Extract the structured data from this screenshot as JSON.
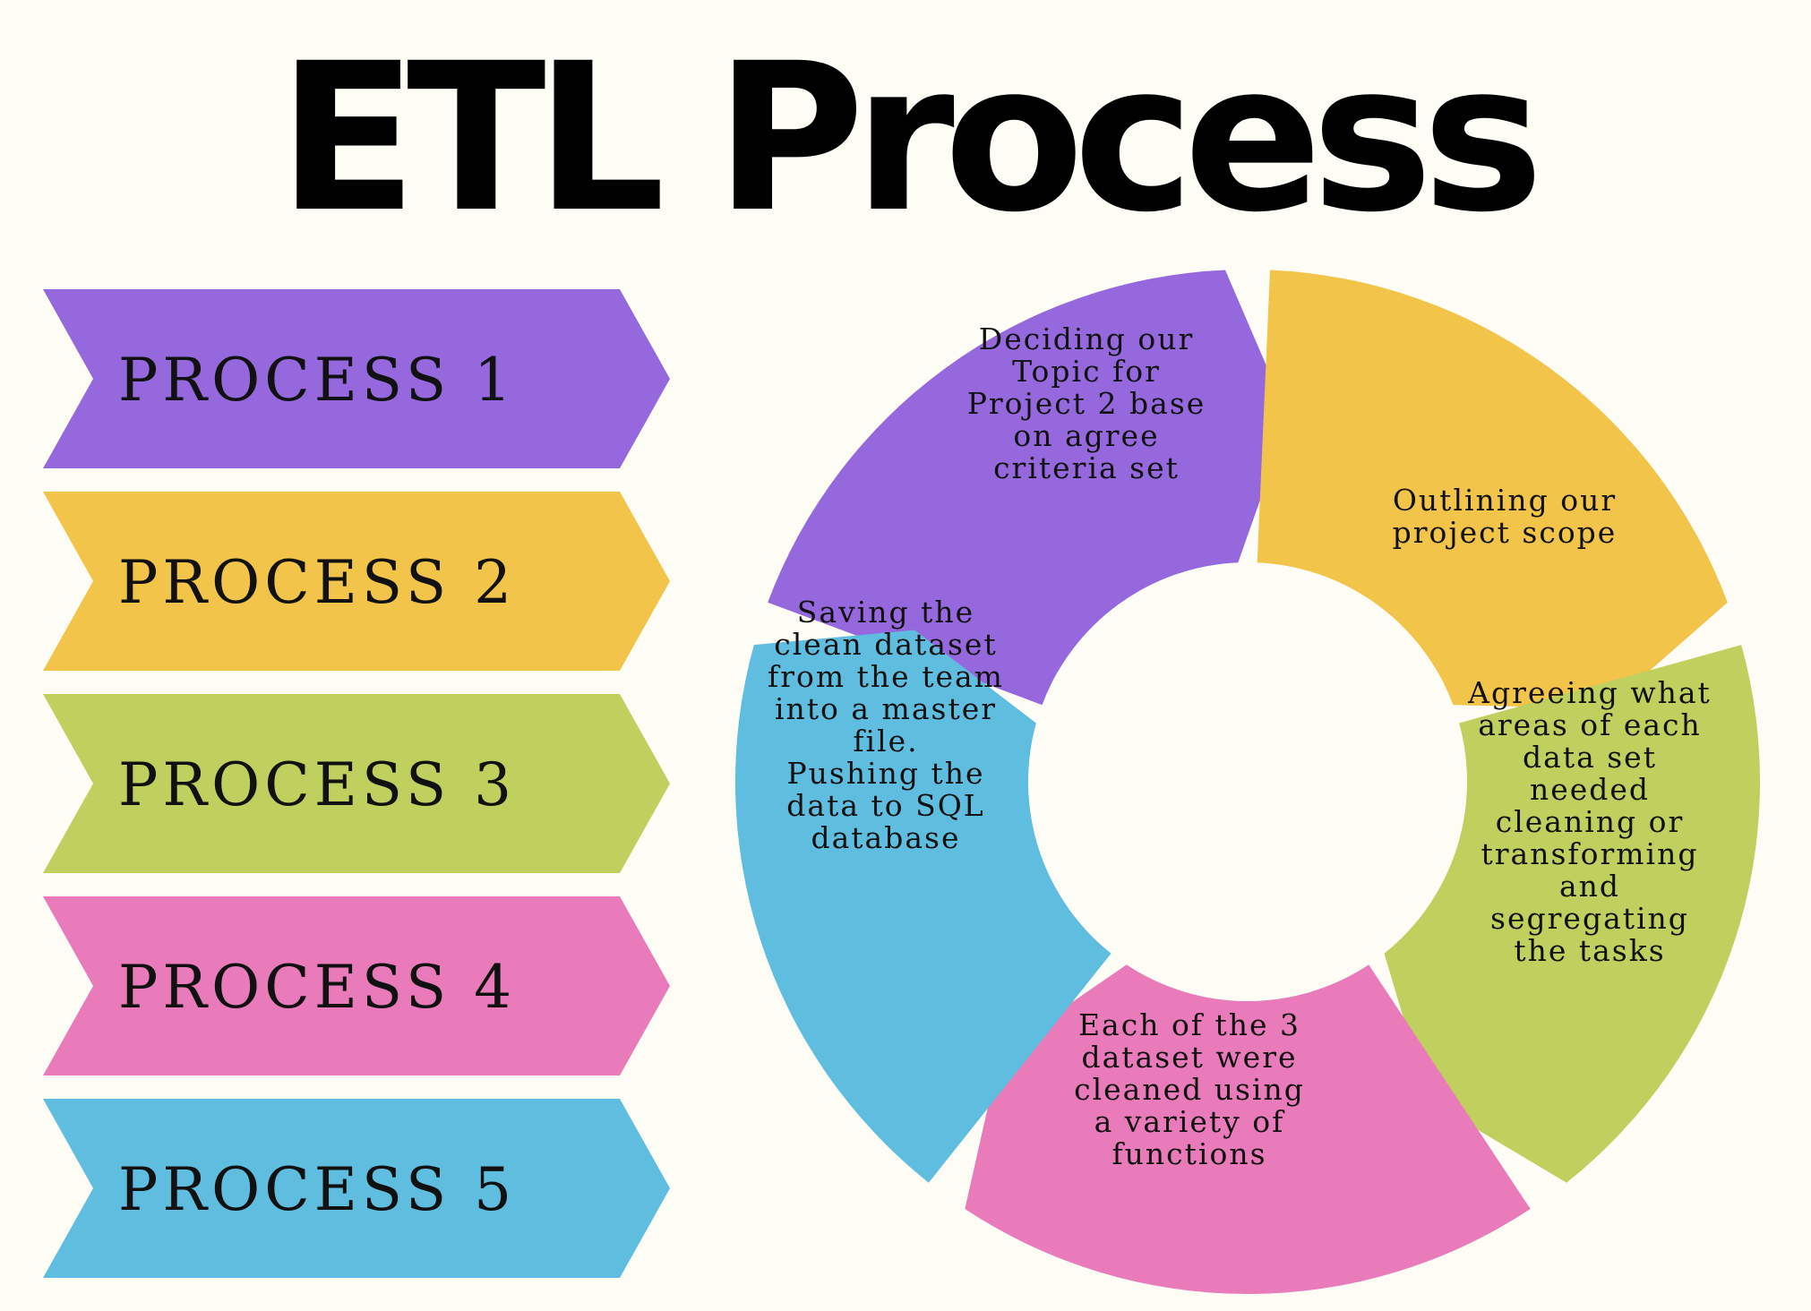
{
  "title": "ETL Process",
  "processes": [
    {
      "label": "PROCESS 1",
      "color": "#9569dd"
    },
    {
      "label": "PROCESS 2",
      "color": "#f2c44a"
    },
    {
      "label": "PROCESS 3",
      "color": "#bfd05e"
    },
    {
      "label": "PROCESS 4",
      "color": "#ea7bbb"
    },
    {
      "label": "PROCESS 5",
      "color": "#5fbedf"
    }
  ],
  "cycle_steps": [
    {
      "lines": [
        "Deciding our",
        "Topic for",
        "Project 2 base",
        "on agree",
        "criteria set"
      ],
      "color": "#9569dd"
    },
    {
      "lines": [
        "Outlining our",
        "project scope"
      ],
      "color": "#f2c44a"
    },
    {
      "lines": [
        "Agreeing what",
        "areas of each",
        "data set",
        "needed",
        "cleaning or",
        "transforming",
        "and",
        "segregating",
        "the tasks"
      ],
      "color": "#bfd05e"
    },
    {
      "lines": [
        "Each of the 3",
        "dataset were",
        "cleaned using",
        "a variety of",
        "functions"
      ],
      "color": "#ea7bbb"
    },
    {
      "lines": [
        "Saving the",
        "clean dataset",
        "from the team",
        "into a master",
        "file.",
        "Pushing the",
        "data to SQL",
        "database"
      ],
      "color": "#5fbedf"
    }
  ]
}
